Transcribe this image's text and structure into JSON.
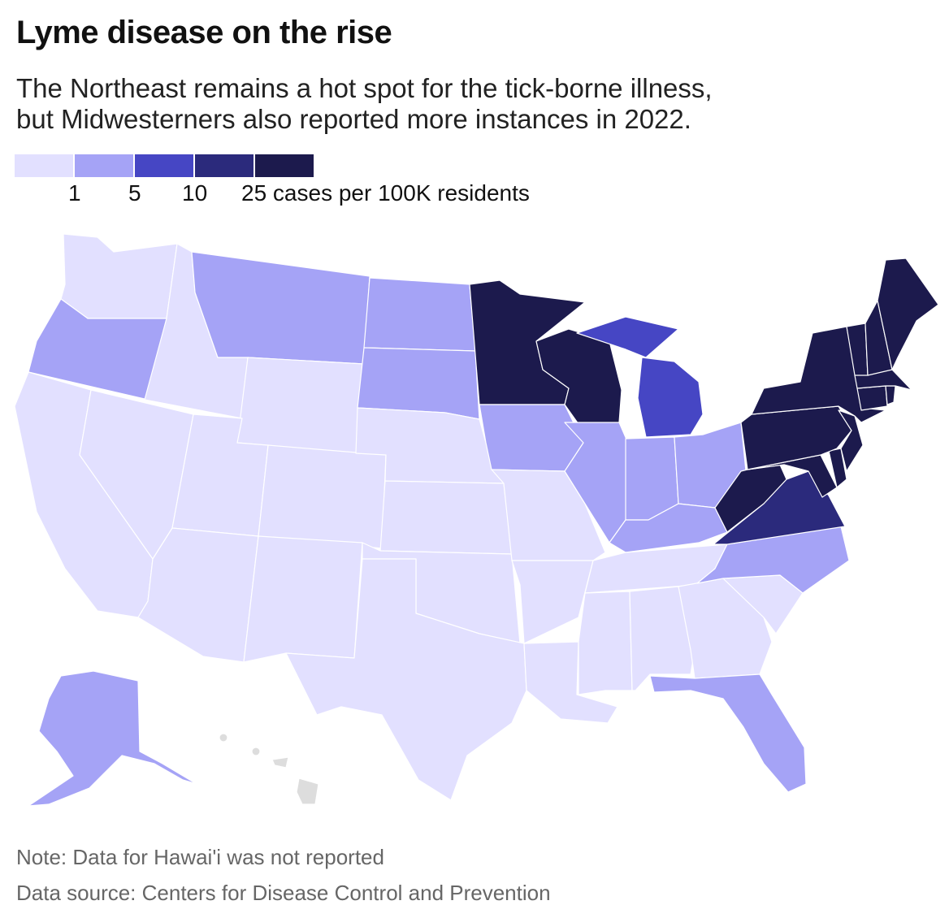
{
  "title": "Lyme disease on the rise",
  "subtitle_line1": "The Northeast remains a hot spot for the tick-borne illness,",
  "subtitle_line2": "but Midwesterners also reported more instances in 2022.",
  "legend": {
    "colors": [
      "#e2e0ff",
      "#a5a3f6",
      "#4646c4",
      "#2b2a7c",
      "#1c1a4d"
    ],
    "ticks": [
      "1",
      "5",
      "10",
      "25 cases per 100K residents"
    ]
  },
  "note": "Note: Data for Hawai'i was not reported",
  "source": "Data source: Centers for Disease Control and Prevention",
  "map_data": {
    "metric": "Lyme disease cases per 100K residents, 2022",
    "bins": [
      "<1",
      "1–5",
      "5–10",
      "10–25",
      "25+"
    ],
    "no_data_color": "#dddddd",
    "states": {
      "WA": 0,
      "OR": 1,
      "CA": 0,
      "NV": 0,
      "ID": 0,
      "MT": 1,
      "WY": 0,
      "UT": 0,
      "CO": 0,
      "AZ": 0,
      "NM": 0,
      "ND": 1,
      "SD": 1,
      "NE": 0,
      "KS": 0,
      "OK": 0,
      "TX": 0,
      "MN": 4,
      "IA": 1,
      "MO": 0,
      "AR": 0,
      "LA": 0,
      "WI": 4,
      "IL": 1,
      "MI": 2,
      "IN": 1,
      "OH": 1,
      "KY": 1,
      "TN": 0,
      "MS": 0,
      "AL": 0,
      "GA": 0,
      "FL": 1,
      "SC": 0,
      "NC": 1,
      "VA": 3,
      "WV": 4,
      "MD": 4,
      "DE": 4,
      "PA": 4,
      "NJ": 4,
      "NY": 4,
      "CT": 4,
      "RI": 4,
      "MA": 4,
      "VT": 4,
      "NH": 4,
      "ME": 4,
      "AK": 1,
      "HI": null
    }
  }
}
